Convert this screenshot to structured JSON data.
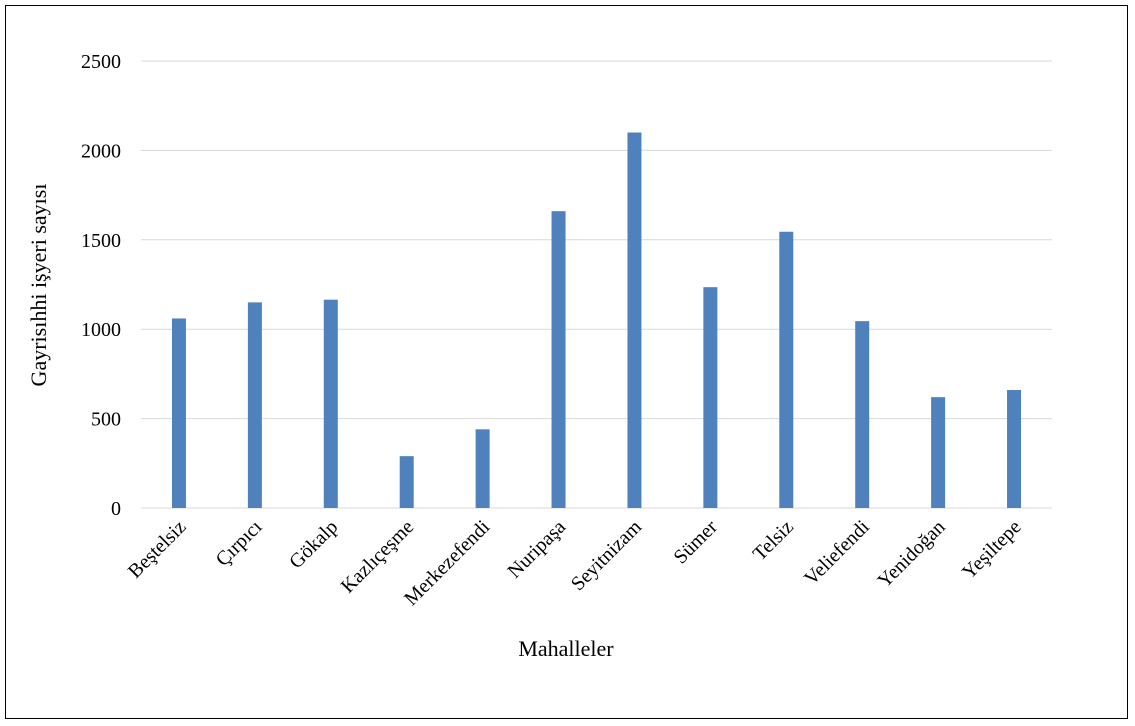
{
  "chart_data": {
    "type": "bar",
    "title": "",
    "xlabel": "Mahalleler",
    "ylabel": "Gayrisıhhi işyeri sayısı",
    "categories": [
      "Beştelsiz",
      "Çırpıcı",
      "Gökalp",
      "Kazlıçeşme",
      "Merkezefendi",
      "Nuripaşa",
      "Seyitnizam",
      "Sümer",
      "Telsiz",
      "Veliefendi",
      "Yenidoğan",
      "Yeşiltepe"
    ],
    "values": [
      1060,
      1150,
      1165,
      290,
      440,
      1660,
      2100,
      1235,
      1545,
      1045,
      620,
      660
    ],
    "ylim": [
      0,
      2500
    ],
    "yticks": [
      0,
      500,
      1000,
      1500,
      2000,
      2500
    ],
    "grid": true,
    "legend": "none",
    "bar_color": "#4f81bd",
    "grid_color": "#d9d9d9"
  }
}
